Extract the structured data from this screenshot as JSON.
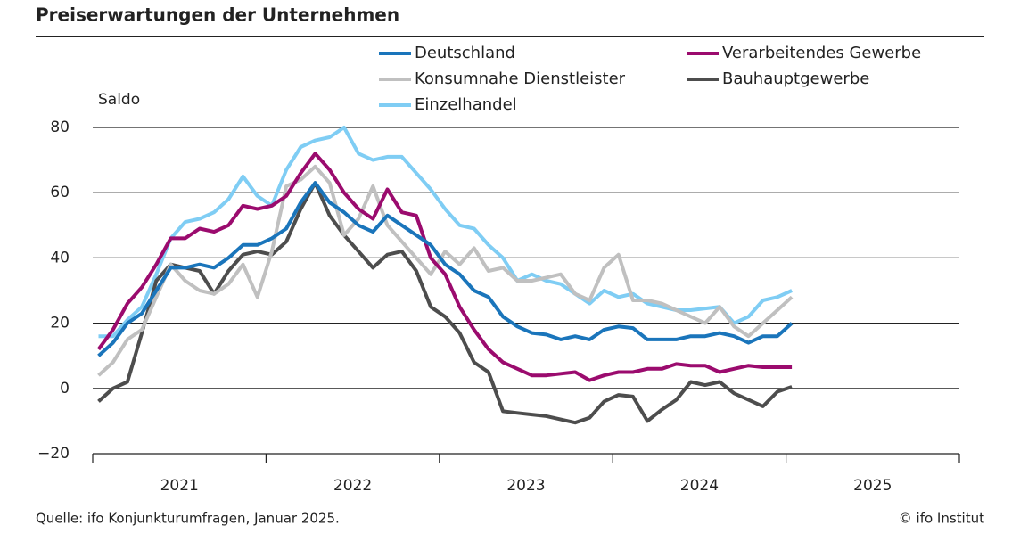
{
  "chart_data": {
    "type": "line",
    "title": "Preiserwartungen der Unternehmen",
    "y_label": "Saldo",
    "source": "Quelle: ifo Konjunkturumfragen, Januar 2025.",
    "credit": "© ifo Institut",
    "categories": [
      null,
      null,
      null,
      null,
      null,
      null,
      null,
      null,
      null,
      null,
      null,
      null,
      null,
      null,
      null,
      null,
      null,
      null,
      null,
      null,
      null,
      null,
      null,
      null,
      null,
      null,
      null,
      null,
      null,
      null,
      null,
      null,
      null,
      null,
      null,
      null,
      null,
      null,
      null,
      null,
      null,
      null,
      null,
      null,
      null,
      null,
      null,
      null,
      null,
      null,
      null,
      null,
      null,
      null,
      null,
      null,
      null,
      null,
      null,
      null
    ],
    "years": [
      2021,
      2022,
      2023,
      2024,
      2025
    ],
    "ylim": [
      -20,
      80
    ],
    "yticks": [
      {
        "value": -20,
        "label": "−20"
      },
      0,
      20,
      40,
      60,
      80
    ],
    "grid": true,
    "series": [
      {
        "name": "Deutschland",
        "color": "#1a75bb",
        "values": [
          10,
          14,
          20,
          23,
          30,
          37,
          37,
          38,
          37,
          40,
          44,
          44,
          46,
          49,
          57,
          63,
          57,
          54,
          50,
          48,
          53,
          50,
          47,
          44,
          38,
          35,
          30,
          28,
          22,
          19,
          17,
          16.5,
          15,
          16,
          15,
          18,
          19,
          18.5,
          15,
          15,
          15,
          16,
          16,
          17,
          16,
          14,
          16,
          16,
          20,
          null,
          null,
          null,
          null,
          null,
          null,
          null,
          null,
          null,
          null,
          null
        ]
      },
      {
        "name": "Verarbeitendes Gewerbe",
        "color": "#9b0b6e",
        "values": [
          12,
          18,
          26,
          31,
          38,
          46,
          46,
          49,
          48,
          50,
          56,
          55,
          56,
          59,
          66,
          72,
          67,
          60,
          55,
          52,
          61,
          54,
          53,
          40,
          35,
          25,
          18,
          12,
          8,
          6,
          4,
          4,
          4.5,
          5,
          2.5,
          4,
          5,
          5,
          6,
          6,
          7.5,
          7,
          7,
          5,
          6,
          7,
          6.5,
          6.5,
          6.5,
          null,
          null,
          null,
          null,
          null,
          null,
          null,
          null,
          null,
          null,
          null
        ]
      },
      {
        "name": "Konsumnahe Dienstleister",
        "color": "#c0c0c0",
        "values": [
          4,
          8,
          15,
          18,
          28,
          38,
          33,
          30,
          29,
          32,
          38,
          28,
          42,
          62,
          64,
          68,
          63,
          47,
          52,
          62,
          50,
          45,
          40,
          35,
          42,
          38,
          43,
          36,
          37,
          33,
          33,
          34,
          35,
          29,
          27,
          37,
          41,
          27,
          27,
          26,
          24,
          22,
          20,
          25,
          19,
          16,
          20,
          24,
          28,
          null,
          null,
          null,
          null,
          null,
          null,
          null,
          null,
          null,
          null,
          null
        ]
      },
      {
        "name": "Bauhauptgewerbe",
        "color": "#4d4d4d",
        "values": [
          -4,
          0,
          2,
          17,
          33,
          38,
          37,
          36,
          29,
          36,
          41,
          42,
          41,
          45,
          55,
          63,
          53,
          47,
          42,
          37,
          41,
          42,
          36,
          25,
          22,
          17,
          8,
          5,
          -7,
          -7.5,
          -8,
          -8.5,
          -9.5,
          -10.5,
          -9,
          -4,
          -2,
          -2.5,
          -10,
          -6.5,
          -3.5,
          2,
          1,
          2,
          -1.5,
          -3.5,
          -5.5,
          -1,
          0.5,
          null,
          null,
          null,
          null,
          null,
          null,
          null,
          null,
          null,
          null,
          null
        ]
      },
      {
        "name": "Einzelhandel",
        "color": "#7fcdf4",
        "values": [
          16,
          16,
          21,
          25,
          35,
          46,
          51,
          52,
          54,
          58,
          65,
          59,
          56,
          67,
          74,
          76,
          77,
          80,
          72,
          70,
          71,
          71,
          66,
          61,
          55,
          50,
          49,
          44,
          40,
          33,
          35,
          33,
          32,
          29,
          26,
          30,
          28,
          29,
          26,
          25,
          24,
          24,
          24.5,
          25,
          20,
          22,
          27,
          28,
          30,
          null,
          null,
          null,
          null,
          null,
          null,
          null,
          null,
          null,
          null,
          null
        ]
      }
    ]
  }
}
